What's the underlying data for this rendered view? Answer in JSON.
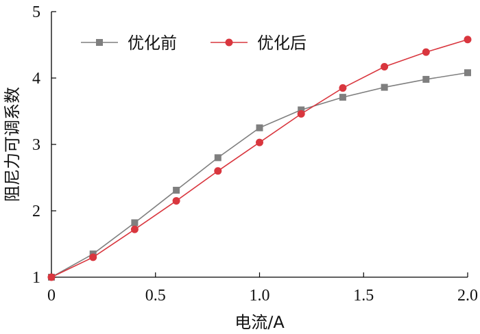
{
  "chart_data": {
    "type": "line",
    "xlabel": "电流/A",
    "ylabel": "阻尼力可调系数",
    "xlim": [
      0,
      2.0
    ],
    "ylim": [
      1,
      5
    ],
    "xticks": [
      0,
      0.5,
      1.0,
      1.5,
      2.0
    ],
    "xtick_labels": [
      "0",
      "0.5",
      "1.0",
      "1.5",
      "2.0"
    ],
    "yticks": [
      1,
      2,
      3,
      4,
      5
    ],
    "ytick_labels": [
      "1",
      "2",
      "3",
      "4",
      "5"
    ],
    "grid": false,
    "legend_position": "top-left",
    "x": [
      0,
      0.2,
      0.4,
      0.6,
      0.8,
      1.0,
      1.2,
      1.4,
      1.6,
      1.8,
      2.0
    ],
    "series": [
      {
        "name": "优化前",
        "color": "#7f7f7f",
        "marker": "square",
        "values": [
          1.0,
          1.35,
          1.82,
          2.31,
          2.8,
          3.25,
          3.52,
          3.71,
          3.86,
          3.98,
          4.08
        ]
      },
      {
        "name": "优化后",
        "color": "#d9363e",
        "marker": "circle",
        "values": [
          1.0,
          1.3,
          1.72,
          2.15,
          2.6,
          3.03,
          3.46,
          3.85,
          4.17,
          4.39,
          4.58
        ]
      }
    ]
  }
}
